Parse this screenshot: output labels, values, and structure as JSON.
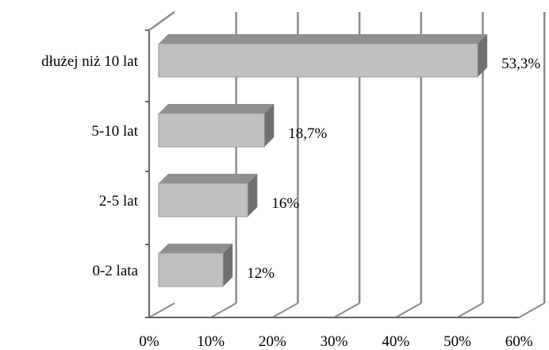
{
  "chart_data": {
    "type": "bar",
    "orientation": "horizontal",
    "style": "3d",
    "categories": [
      "dłużej niż 10 lat",
      "5-10 lat",
      "2-5 lat",
      "0-2 lata"
    ],
    "values": [
      53.3,
      18.7,
      16,
      12
    ],
    "data_labels": [
      "53,3%",
      "18,7%",
      "16%",
      "12%"
    ],
    "x_ticks": [
      "0%",
      "10%",
      "20%",
      "30%",
      "40%",
      "50%",
      "60%"
    ],
    "xlim": [
      0,
      60
    ],
    "grid": true,
    "legend": "none",
    "colors": {
      "bar_front": "#c0c0c0",
      "bar_top": "#8f8f8f",
      "bar_side": "#707070",
      "grid": "#8c8c8c"
    }
  }
}
